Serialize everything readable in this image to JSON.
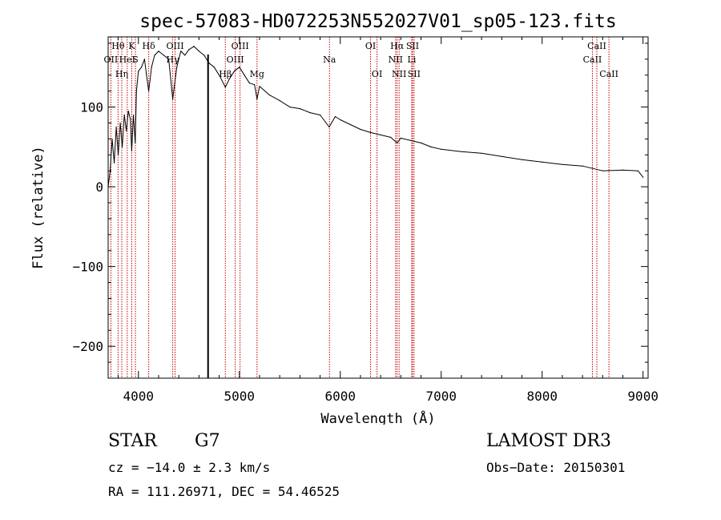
{
  "chart_data": {
    "type": "line",
    "title": "spec-57083-HD072253N552027V01_sp05-123.fits",
    "xlabel": "Wavelength (Å)",
    "ylabel": "Flux (relative)",
    "xlim": [
      3700,
      9050
    ],
    "ylim": [
      -240,
      188
    ],
    "xticks": [
      4000,
      5000,
      6000,
      7000,
      8000,
      9000
    ],
    "yticks": [
      -200,
      -100,
      0,
      100
    ],
    "x_tick_labels": [
      "4000",
      "5000",
      "6000",
      "7000",
      "8000",
      "9000"
    ],
    "y_tick_labels": [
      "−200",
      "−100",
      "0",
      "100"
    ],
    "grid": false,
    "series": [
      {
        "name": "spectrum",
        "x": [
          3700,
          3720,
          3740,
          3760,
          3780,
          3800,
          3820,
          3840,
          3860,
          3880,
          3900,
          3920,
          3933,
          3950,
          3968,
          3980,
          4000,
          4030,
          4060,
          4080,
          4102,
          4130,
          4160,
          4200,
          4250,
          4300,
          4340,
          4380,
          4420,
          4460,
          4500,
          4550,
          4600,
          4650,
          4700,
          4750,
          4800,
          4861,
          4900,
          4950,
          5000,
          5050,
          5100,
          5150,
          5175,
          5200,
          5300,
          5400,
          5500,
          5600,
          5700,
          5800,
          5890,
          5950,
          6000,
          6100,
          6200,
          6300,
          6400,
          6500,
          6563,
          6600,
          6700,
          6800,
          6900,
          7000,
          7200,
          7400,
          7600,
          7800,
          8000,
          8200,
          8400,
          8600,
          8800,
          8950,
          9000
        ],
        "y": [
          0,
          20,
          60,
          30,
          75,
          40,
          80,
          50,
          90,
          70,
          95,
          85,
          45,
          90,
          55,
          120,
          145,
          150,
          160,
          140,
          120,
          150,
          165,
          170,
          165,
          160,
          110,
          150,
          170,
          165,
          172,
          176,
          170,
          165,
          155,
          150,
          140,
          125,
          135,
          145,
          150,
          140,
          130,
          128,
          110,
          126,
          115,
          108,
          100,
          98,
          93,
          90,
          75,
          88,
          84,
          78,
          72,
          68,
          65,
          62,
          55,
          61,
          58,
          55,
          50,
          47,
          44,
          42,
          38,
          34,
          31,
          28,
          26,
          20,
          21,
          20,
          12
        ]
      }
    ],
    "vertical_marker": {
      "x": 4690
    },
    "emission_lines": [
      {
        "name": "Hθ",
        "x": 3798,
        "row": 1
      },
      {
        "name": "OII",
        "x": 3727,
        "row": 2
      },
      {
        "name": "K",
        "x": 3934,
        "row": 1
      },
      {
        "name": "HeI",
        "x": 3889,
        "row": 2
      },
      {
        "name": "Hη",
        "x": 3835,
        "row": 3
      },
      {
        "name": "Hδ",
        "x": 4102,
        "row": 1
      },
      {
        "name": "S",
        "x": 3970,
        "row": 2
      },
      {
        "name": "OIII",
        "x": 4363,
        "row": 1
      },
      {
        "name": "Hγ",
        "x": 4340,
        "row": 2
      },
      {
        "name": "Hβ",
        "x": 4861,
        "row": 3
      },
      {
        "name": "OIII",
        "x": 5007,
        "row": 1
      },
      {
        "name": "OIII",
        "x": 4959,
        "row": 2
      },
      {
        "name": "Mg",
        "x": 5175,
        "row": 3
      },
      {
        "name": "Na",
        "x": 5893,
        "row": 2
      },
      {
        "name": "OI",
        "x": 6300,
        "row": 1
      },
      {
        "name": "OI",
        "x": 6364,
        "row": 3
      },
      {
        "name": "Hα",
        "x": 6563,
        "row": 1
      },
      {
        "name": "NII",
        "x": 6548,
        "row": 2
      },
      {
        "name": "NII",
        "x": 6583,
        "row": 3
      },
      {
        "name": "SII",
        "x": 6716,
        "row": 1
      },
      {
        "name": "Li",
        "x": 6708,
        "row": 2
      },
      {
        "name": "SII",
        "x": 6731,
        "row": 3
      },
      {
        "name": "CaII",
        "x": 8542,
        "row": 1
      },
      {
        "name": "CaII",
        "x": 8498,
        "row": 2
      },
      {
        "name": "CaII",
        "x": 8662,
        "row": 3
      }
    ]
  },
  "footer": {
    "object_class": "STAR",
    "subclass": "G7",
    "survey": "LAMOST DR3",
    "redshift": "cz = −14.0 ± 2.3 km/s",
    "obs_date": "Obs−Date: 20150301",
    "coordinates": "RA = 111.26971, DEC =  54.46525"
  },
  "colors": {
    "spectrum": "#000000",
    "line_marker": "#c00000",
    "axes": "#000000",
    "background": "#ffffff"
  }
}
